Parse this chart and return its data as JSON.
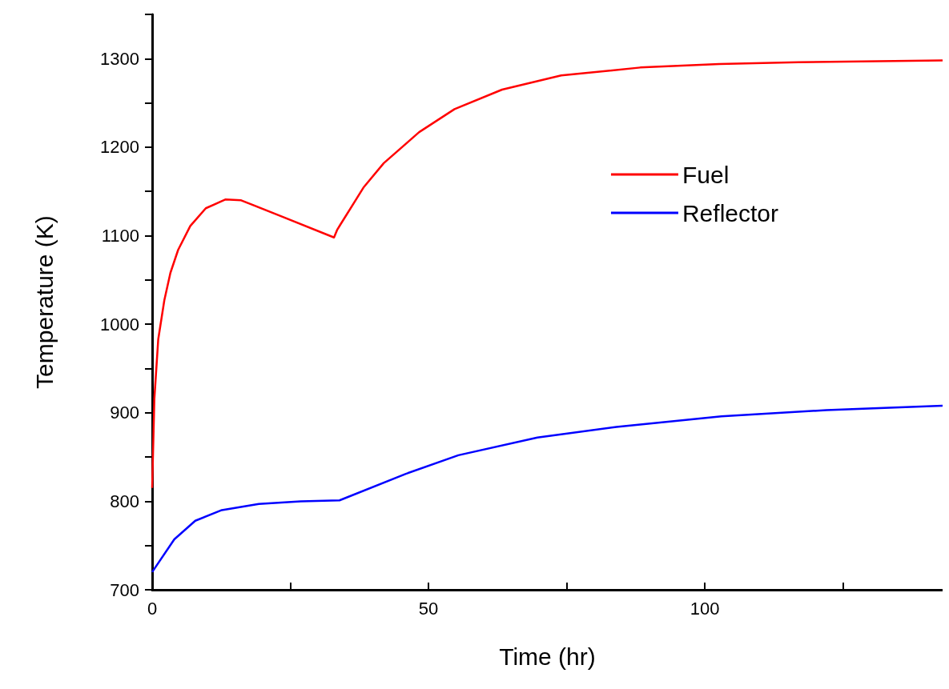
{
  "chart_data": {
    "type": "line",
    "xlabel": "Time (hr)",
    "ylabel": "Temperature (K)",
    "xlim": [
      0,
      143
    ],
    "xticks": [
      0,
      {
        "value": 25,
        "label": null
      },
      50,
      {
        "value": 75,
        "label": null
      },
      100,
      {
        "value": 125,
        "label": null
      }
    ],
    "ylim": [
      700,
      1350
    ],
    "yticks": [
      700,
      {
        "value": 750,
        "label": null
      },
      800,
      {
        "value": 850,
        "label": null
      },
      900,
      {
        "value": 950,
        "label": null
      },
      1000,
      {
        "value": 1050,
        "label": null
      },
      1100,
      {
        "value": 1150,
        "label": null
      },
      1200,
      {
        "value": 1250,
        "label": null
      },
      1300,
      {
        "value": 1350,
        "label": null
      }
    ],
    "grid": false,
    "legend": "top right",
    "marker": "none",
    "line_style": "solid",
    "series": [
      {
        "name": "Fuel",
        "color": "#ff0000",
        "x": [
          0,
          0.4,
          1.1,
          2.2,
          3.3,
          4.7,
          6.9,
          9.7,
          13.3,
          16.1,
          23.3,
          32.9,
          33.5,
          34,
          38.3,
          41.9,
          48.3,
          54.7,
          63.3,
          74,
          88.3,
          102.6,
          116.9,
          143
        ],
        "values": [
          815,
          916,
          983,
          1027,
          1058,
          1084,
          1111,
          1131,
          1141,
          1140,
          1122,
          1098,
          1107,
          1112,
          1155,
          1182,
          1217,
          1243,
          1265,
          1281,
          1290,
          1294,
          1296,
          1298
        ]
      },
      {
        "name": "Reflector",
        "color": "#0000ff",
        "x": [
          0,
          4,
          7.8,
          12.6,
          19.3,
          26.9,
          33.9,
          45.9,
          55.4,
          69.7,
          84,
          103,
          122,
          143
        ],
        "values": [
          720,
          757,
          778,
          790,
          797,
          800,
          801,
          831,
          852,
          872,
          884,
          896,
          903,
          908
        ]
      }
    ]
  }
}
